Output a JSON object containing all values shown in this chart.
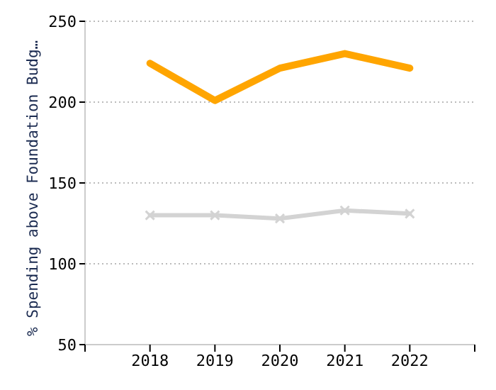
{
  "chart_data": {
    "type": "line",
    "ylabel": "% Spending above Foundation Budg…",
    "x": [
      2018,
      2019,
      2020,
      2021,
      2022
    ],
    "xlim": [
      2017,
      2023
    ],
    "xticks": [
      {
        "value": 2017,
        "label": null
      },
      2018,
      2019,
      2020,
      2021,
      2022,
      {
        "value": 2023,
        "label": null
      }
    ],
    "ylim": [
      50,
      250
    ],
    "yticks": [
      50,
      100,
      150,
      200,
      250
    ],
    "grid": "y",
    "series": [
      {
        "color": "#ffa500",
        "values": [
          224,
          201,
          221,
          230,
          221
        ],
        "marker": "none"
      },
      {
        "color": "#d3d3d3",
        "values": [
          130,
          130,
          128,
          133,
          131
        ],
        "marker": "cross"
      }
    ]
  }
}
